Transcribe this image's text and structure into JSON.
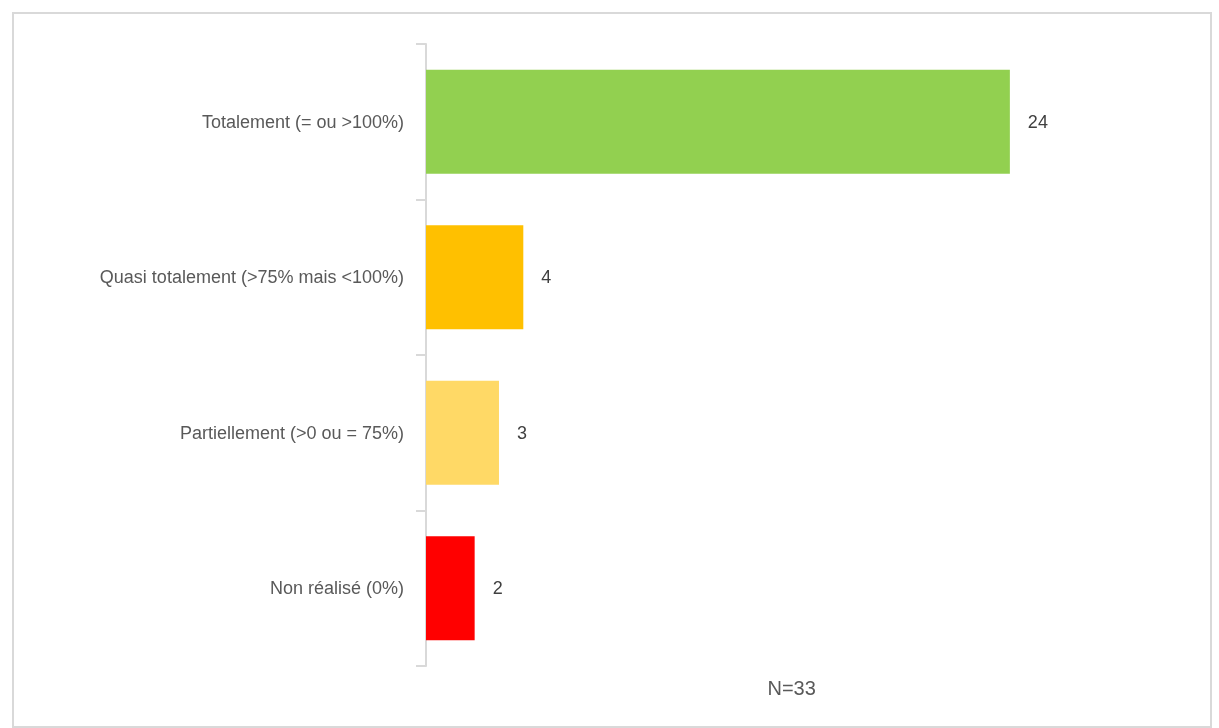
{
  "chart_data": {
    "type": "bar",
    "orientation": "horizontal",
    "categories": [
      "Totalement (= ou >100%)",
      "Quasi totalement (>75% mais <100%)",
      "Partiellement (>0 ou = 75%)",
      "Non réalisé (0%)"
    ],
    "values": [
      24,
      4,
      3,
      2
    ],
    "colors": [
      "#92d050",
      "#ffc000",
      "#ffd966",
      "#ff0000"
    ],
    "data_labels": true,
    "annotations": [
      "N=33"
    ]
  }
}
